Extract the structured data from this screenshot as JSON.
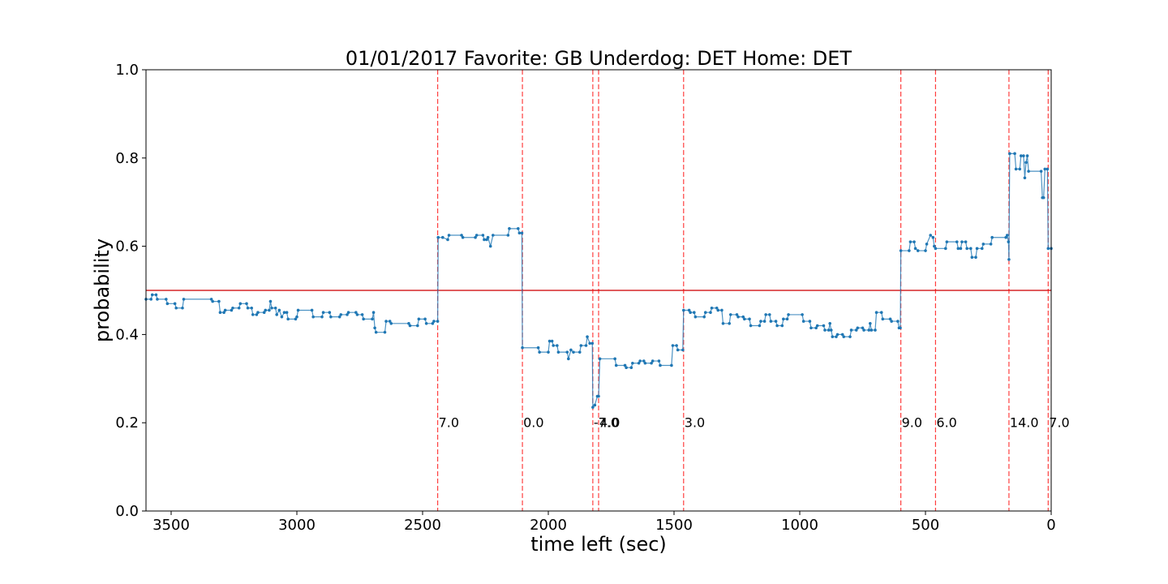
{
  "chart_data": {
    "type": "line",
    "title": "01/01/2017 Favorite: GB Underdog: DET Home: DET",
    "xlabel": "time left (sec)",
    "ylabel": "probability",
    "xlim": [
      3600,
      0
    ],
    "ylim": [
      0.0,
      1.0
    ],
    "x_inverted": true,
    "grid": false,
    "x_ticks": [
      3500,
      3000,
      2500,
      2000,
      1500,
      1000,
      500,
      0
    ],
    "x_tick_labels": [
      "3500",
      "3000",
      "2500",
      "2000",
      "1500",
      "1000",
      "500",
      "0"
    ],
    "y_ticks": [
      0.0,
      0.2,
      0.4,
      0.6,
      0.8,
      1.0
    ],
    "y_tick_labels": [
      "0.0",
      "0.2",
      "0.4",
      "0.6",
      "0.8",
      "1.0"
    ],
    "reference_line": {
      "y": 0.5,
      "color": "#d62728"
    },
    "series": [
      {
        "color": "#1f77b4",
        "points": [
          [
            3600,
            0.48
          ],
          [
            3580,
            0.48
          ],
          [
            3575,
            0.49
          ],
          [
            3560,
            0.49
          ],
          [
            3555,
            0.48
          ],
          [
            3520,
            0.48
          ],
          [
            3515,
            0.47
          ],
          [
            3485,
            0.47
          ],
          [
            3480,
            0.46
          ],
          [
            3455,
            0.46
          ],
          [
            3450,
            0.48
          ],
          [
            3340,
            0.48
          ],
          [
            3335,
            0.475
          ],
          [
            3310,
            0.475
          ],
          [
            3305,
            0.45
          ],
          [
            3290,
            0.45
          ],
          [
            3285,
            0.455
          ],
          [
            3260,
            0.455
          ],
          [
            3255,
            0.46
          ],
          [
            3230,
            0.46
          ],
          [
            3225,
            0.47
          ],
          [
            3200,
            0.47
          ],
          [
            3195,
            0.46
          ],
          [
            3180,
            0.46
          ],
          [
            3175,
            0.445
          ],
          [
            3160,
            0.445
          ],
          [
            3155,
            0.45
          ],
          [
            3130,
            0.45
          ],
          [
            3125,
            0.455
          ],
          [
            3110,
            0.455
          ],
          [
            3105,
            0.475
          ],
          [
            3100,
            0.46
          ],
          [
            3085,
            0.46
          ],
          [
            3080,
            0.445
          ],
          [
            3070,
            0.455
          ],
          [
            3060,
            0.44
          ],
          [
            3050,
            0.45
          ],
          [
            3040,
            0.45
          ],
          [
            3035,
            0.435
          ],
          [
            3005,
            0.435
          ],
          [
            3000,
            0.44
          ],
          [
            2995,
            0.455
          ],
          [
            2940,
            0.455
          ],
          [
            2935,
            0.44
          ],
          [
            2900,
            0.44
          ],
          [
            2895,
            0.45
          ],
          [
            2870,
            0.45
          ],
          [
            2865,
            0.44
          ],
          [
            2830,
            0.44
          ],
          [
            2825,
            0.445
          ],
          [
            2800,
            0.445
          ],
          [
            2795,
            0.45
          ],
          [
            2765,
            0.45
          ],
          [
            2760,
            0.445
          ],
          [
            2740,
            0.445
          ],
          [
            2735,
            0.435
          ],
          [
            2700,
            0.435
          ],
          [
            2695,
            0.45
          ],
          [
            2690,
            0.415
          ],
          [
            2685,
            0.405
          ],
          [
            2650,
            0.405
          ],
          [
            2645,
            0.43
          ],
          [
            2630,
            0.43
          ],
          [
            2625,
            0.425
          ],
          [
            2555,
            0.425
          ],
          [
            2550,
            0.42
          ],
          [
            2520,
            0.42
          ],
          [
            2515,
            0.435
          ],
          [
            2490,
            0.435
          ],
          [
            2485,
            0.425
          ],
          [
            2460,
            0.425
          ],
          [
            2455,
            0.43
          ],
          [
            2440,
            0.43
          ],
          [
            2438,
            0.62
          ],
          [
            2420,
            0.62
          ],
          [
            2400,
            0.615
          ],
          [
            2395,
            0.625
          ],
          [
            2345,
            0.625
          ],
          [
            2340,
            0.62
          ],
          [
            2290,
            0.62
          ],
          [
            2285,
            0.625
          ],
          [
            2260,
            0.625
          ],
          [
            2255,
            0.615
          ],
          [
            2245,
            0.615
          ],
          [
            2240,
            0.62
          ],
          [
            2230,
            0.6
          ],
          [
            2220,
            0.625
          ],
          [
            2160,
            0.625
          ],
          [
            2155,
            0.64
          ],
          [
            2120,
            0.64
          ],
          [
            2115,
            0.63
          ],
          [
            2105,
            0.63
          ],
          [
            2103,
            0.37
          ],
          [
            2040,
            0.37
          ],
          [
            2035,
            0.36
          ],
          [
            2000,
            0.36
          ],
          [
            1995,
            0.385
          ],
          [
            1985,
            0.385
          ],
          [
            1980,
            0.375
          ],
          [
            1965,
            0.375
          ],
          [
            1960,
            0.36
          ],
          [
            1925,
            0.36
          ],
          [
            1920,
            0.345
          ],
          [
            1910,
            0.365
          ],
          [
            1900,
            0.36
          ],
          [
            1875,
            0.36
          ],
          [
            1870,
            0.375
          ],
          [
            1850,
            0.375
          ],
          [
            1845,
            0.395
          ],
          [
            1835,
            0.38
          ],
          [
            1825,
            0.38
          ],
          [
            1823,
            0.235
          ],
          [
            1815,
            0.24
          ],
          [
            1805,
            0.26
          ],
          [
            1800,
            0.26
          ],
          [
            1795,
            0.345
          ],
          [
            1735,
            0.345
          ],
          [
            1730,
            0.33
          ],
          [
            1695,
            0.33
          ],
          [
            1690,
            0.325
          ],
          [
            1670,
            0.325
          ],
          [
            1665,
            0.335
          ],
          [
            1640,
            0.335
          ],
          [
            1635,
            0.34
          ],
          [
            1620,
            0.34
          ],
          [
            1615,
            0.335
          ],
          [
            1590,
            0.335
          ],
          [
            1585,
            0.34
          ],
          [
            1560,
            0.34
          ],
          [
            1555,
            0.33
          ],
          [
            1510,
            0.33
          ],
          [
            1505,
            0.375
          ],
          [
            1490,
            0.375
          ],
          [
            1485,
            0.365
          ],
          [
            1465,
            0.365
          ],
          [
            1462,
            0.455
          ],
          [
            1440,
            0.455
          ],
          [
            1435,
            0.45
          ],
          [
            1420,
            0.45
          ],
          [
            1415,
            0.44
          ],
          [
            1380,
            0.44
          ],
          [
            1375,
            0.45
          ],
          [
            1355,
            0.45
          ],
          [
            1350,
            0.46
          ],
          [
            1330,
            0.46
          ],
          [
            1325,
            0.455
          ],
          [
            1310,
            0.455
          ],
          [
            1305,
            0.425
          ],
          [
            1280,
            0.425
          ],
          [
            1275,
            0.445
          ],
          [
            1250,
            0.445
          ],
          [
            1245,
            0.44
          ],
          [
            1225,
            0.44
          ],
          [
            1220,
            0.435
          ],
          [
            1200,
            0.435
          ],
          [
            1195,
            0.42
          ],
          [
            1160,
            0.42
          ],
          [
            1155,
            0.43
          ],
          [
            1140,
            0.43
          ],
          [
            1135,
            0.445
          ],
          [
            1120,
            0.445
          ],
          [
            1115,
            0.43
          ],
          [
            1095,
            0.43
          ],
          [
            1090,
            0.42
          ],
          [
            1070,
            0.42
          ],
          [
            1065,
            0.435
          ],
          [
            1050,
            0.435
          ],
          [
            1045,
            0.445
          ],
          [
            990,
            0.445
          ],
          [
            985,
            0.43
          ],
          [
            960,
            0.43
          ],
          [
            955,
            0.415
          ],
          [
            935,
            0.415
          ],
          [
            930,
            0.42
          ],
          [
            905,
            0.42
          ],
          [
            900,
            0.41
          ],
          [
            885,
            0.41
          ],
          [
            880,
            0.425
          ],
          [
            875,
            0.41
          ],
          [
            870,
            0.395
          ],
          [
            855,
            0.395
          ],
          [
            850,
            0.4
          ],
          [
            830,
            0.4
          ],
          [
            825,
            0.395
          ],
          [
            800,
            0.395
          ],
          [
            795,
            0.41
          ],
          [
            775,
            0.41
          ],
          [
            770,
            0.415
          ],
          [
            750,
            0.415
          ],
          [
            745,
            0.41
          ],
          [
            725,
            0.41
          ],
          [
            720,
            0.425
          ],
          [
            715,
            0.41
          ],
          [
            700,
            0.41
          ],
          [
            695,
            0.45
          ],
          [
            675,
            0.45
          ],
          [
            670,
            0.435
          ],
          [
            640,
            0.435
          ],
          [
            635,
            0.43
          ],
          [
            610,
            0.43
          ],
          [
            605,
            0.415
          ],
          [
            600,
            0.415
          ],
          [
            598,
            0.59
          ],
          [
            565,
            0.59
          ],
          [
            560,
            0.61
          ],
          [
            545,
            0.61
          ],
          [
            540,
            0.595
          ],
          [
            530,
            0.59
          ],
          [
            500,
            0.59
          ],
          [
            495,
            0.605
          ],
          [
            480,
            0.625
          ],
          [
            470,
            0.62
          ],
          [
            465,
            0.6
          ],
          [
            460,
            0.595
          ],
          [
            420,
            0.595
          ],
          [
            415,
            0.61
          ],
          [
            375,
            0.61
          ],
          [
            370,
            0.595
          ],
          [
            360,
            0.595
          ],
          [
            355,
            0.61
          ],
          [
            340,
            0.61
          ],
          [
            335,
            0.595
          ],
          [
            320,
            0.595
          ],
          [
            315,
            0.575
          ],
          [
            300,
            0.575
          ],
          [
            295,
            0.595
          ],
          [
            275,
            0.595
          ],
          [
            270,
            0.605
          ],
          [
            240,
            0.605
          ],
          [
            235,
            0.62
          ],
          [
            180,
            0.62
          ],
          [
            175,
            0.625
          ],
          [
            170,
            0.61
          ],
          [
            168,
            0.57
          ],
          [
            165,
            0.81
          ],
          [
            145,
            0.81
          ],
          [
            140,
            0.775
          ],
          [
            125,
            0.775
          ],
          [
            120,
            0.805
          ],
          [
            110,
            0.805
          ],
          [
            105,
            0.755
          ],
          [
            100,
            0.79
          ],
          [
            95,
            0.805
          ],
          [
            90,
            0.77
          ],
          [
            40,
            0.77
          ],
          [
            35,
            0.71
          ],
          [
            30,
            0.71
          ],
          [
            25,
            0.775
          ],
          [
            15,
            0.775
          ],
          [
            12,
            0.595
          ],
          [
            0,
            0.595
          ]
        ]
      }
    ],
    "vertical_lines": [
      {
        "x": 2440,
        "label": "7.0"
      },
      {
        "x": 2103,
        "label": "0.0"
      },
      {
        "x": 1823,
        "label": "-7.0"
      },
      {
        "x": 1800,
        "label": "4.0"
      },
      {
        "x": 1462,
        "label": "3.0"
      },
      {
        "x": 598,
        "label": "9.0"
      },
      {
        "x": 460,
        "label": "6.0"
      },
      {
        "x": 168,
        "label": "14.0"
      },
      {
        "x": 12,
        "label": "7.0"
      }
    ],
    "vertical_line_color": "#ff0000",
    "vertical_label_y": 0.2
  }
}
